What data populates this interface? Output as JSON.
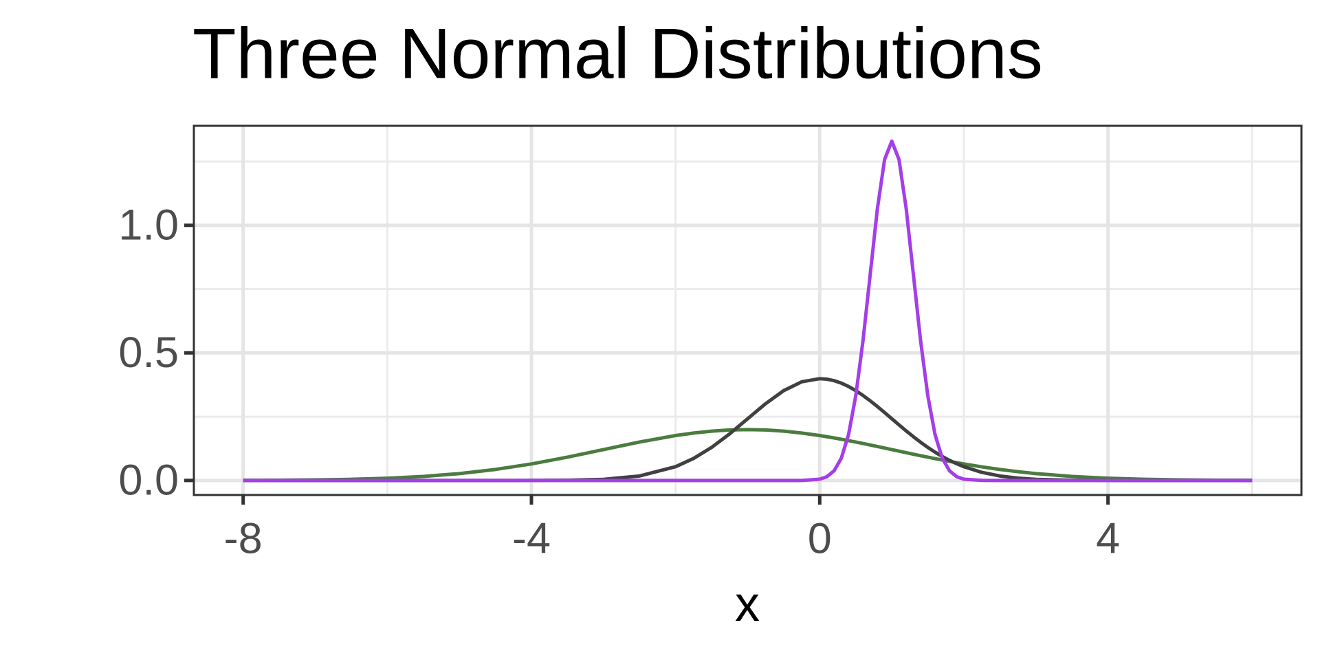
{
  "chart_data": {
    "type": "line",
    "title": "Three Normal Distributions",
    "x_label": "x",
    "x": [
      -8,
      -7.5,
      -7,
      -6.5,
      -6,
      -5.5,
      -5,
      -4.5,
      -4,
      -3.5,
      -3,
      -2.5,
      -2,
      -1.75,
      -1.5,
      -1.25,
      -1,
      -0.75,
      -0.5,
      -0.25,
      0,
      0.1,
      0.2,
      0.3,
      0.4,
      0.5,
      0.6,
      0.7,
      0.8,
      0.9,
      1,
      1.1,
      1.2,
      1.3,
      1.4,
      1.5,
      1.6,
      1.7,
      1.8,
      1.9,
      2,
      2.25,
      2.5,
      2.75,
      3,
      3.5,
      4,
      4.5,
      5,
      5.5,
      6
    ],
    "series": [
      {
        "color": "#4a7c3f",
        "values": [
          0.00044,
          0.00101,
          0.00222,
          0.00454,
          0.00876,
          0.01585,
          0.027,
          0.04313,
          0.06476,
          0.09132,
          0.121,
          0.15057,
          0.17603,
          0.18593,
          0.19335,
          0.1979,
          0.19947,
          0.1979,
          0.19335,
          0.18593,
          0.17603,
          0.17145,
          0.1666,
          0.1615,
          0.15614,
          0.15057,
          0.14485,
          0.139,
          0.13305,
          0.12705,
          0.121,
          0.11495,
          0.10895,
          0.10295,
          0.0971,
          0.09132,
          0.0857,
          0.0802,
          0.07485,
          0.0697,
          0.06476,
          0.05328,
          0.04313,
          0.03439,
          0.027,
          0.01585,
          0.00876,
          0.00454,
          0.00222,
          0.00101,
          0.00044
        ]
      },
      {
        "color": "#404040",
        "values": [
          0,
          0,
          0,
          0,
          0,
          0,
          0,
          0,
          0.0001,
          0.0009,
          0.0044,
          0.0175,
          0.054,
          0.0863,
          0.1295,
          0.1826,
          0.242,
          0.3011,
          0.3521,
          0.3867,
          0.3989,
          0.397,
          0.391,
          0.3814,
          0.3683,
          0.3521,
          0.3332,
          0.3123,
          0.2897,
          0.2661,
          0.242,
          0.2179,
          0.1942,
          0.1714,
          0.1497,
          0.1295,
          0.1109,
          0.094,
          0.079,
          0.0656,
          0.054,
          0.0317,
          0.0175,
          0.0091,
          0.0044,
          0.0009,
          0.0001,
          0,
          0,
          0,
          0
        ]
      },
      {
        "color": "#a43ee8",
        "values": [
          0,
          0,
          0,
          0,
          0,
          0,
          0,
          0,
          0,
          0,
          0,
          0,
          0,
          0,
          0,
          0,
          0,
          0,
          0,
          0,
          0.0051,
          0.0148,
          0.038,
          0.0874,
          0.18,
          0.3317,
          0.5467,
          0.8066,
          1.0648,
          1.258,
          1.3298,
          1.258,
          1.0648,
          0.8066,
          0.5467,
          0.3317,
          0.18,
          0.0874,
          0.038,
          0.0148,
          0.0051,
          0.0002,
          0,
          0,
          0,
          0,
          0,
          0,
          0,
          0,
          0
        ]
      }
    ],
    "xlim": [
      -8.684,
      6.684
    ],
    "ylim": [
      -0.057,
      1.39
    ],
    "xticks": [
      -8,
      -4,
      0,
      4
    ],
    "x_minor_ticks": [
      -6,
      -2,
      2,
      6
    ],
    "yticks": [
      {
        "value": 0,
        "label": "0.0"
      },
      0.5,
      {
        "value": 1,
        "label": "1.0"
      }
    ],
    "y_minor_ticks": [
      0.25,
      0.75,
      1.25
    ],
    "grid": true
  }
}
